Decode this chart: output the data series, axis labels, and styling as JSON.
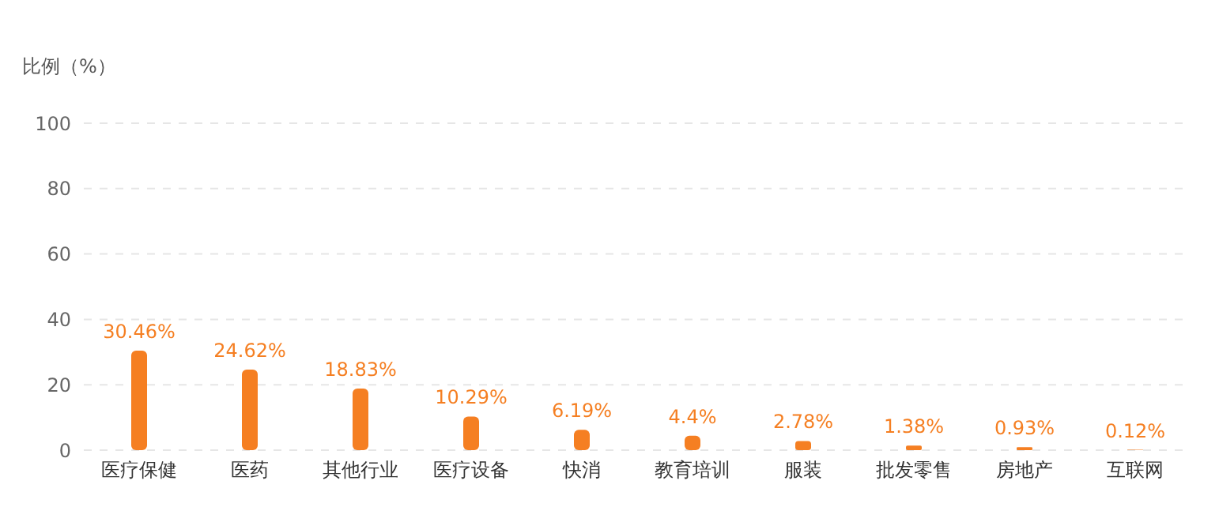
{
  "chart_data": {
    "type": "bar",
    "ylabel": "比例（%）",
    "categories": [
      "医疗保健",
      "医药",
      "其他行业",
      "医疗设备",
      "快消",
      "教育培训",
      "服装",
      "批发零售",
      "房地产",
      "互联网"
    ],
    "values": [
      30.46,
      24.62,
      18.83,
      10.29,
      6.19,
      4.4,
      2.78,
      1.38,
      0.93,
      0.12
    ],
    "value_labels": [
      "30.46%",
      "24.62%",
      "18.83%",
      "10.29%",
      "6.19%",
      "4.4%",
      "2.78%",
      "1.38%",
      "0.93%",
      "0.12%"
    ],
    "color": "#f57f22",
    "ylim": [
      0,
      100
    ],
    "yticks": [
      0,
      20,
      40,
      60,
      80,
      100
    ],
    "grid": "y"
  }
}
